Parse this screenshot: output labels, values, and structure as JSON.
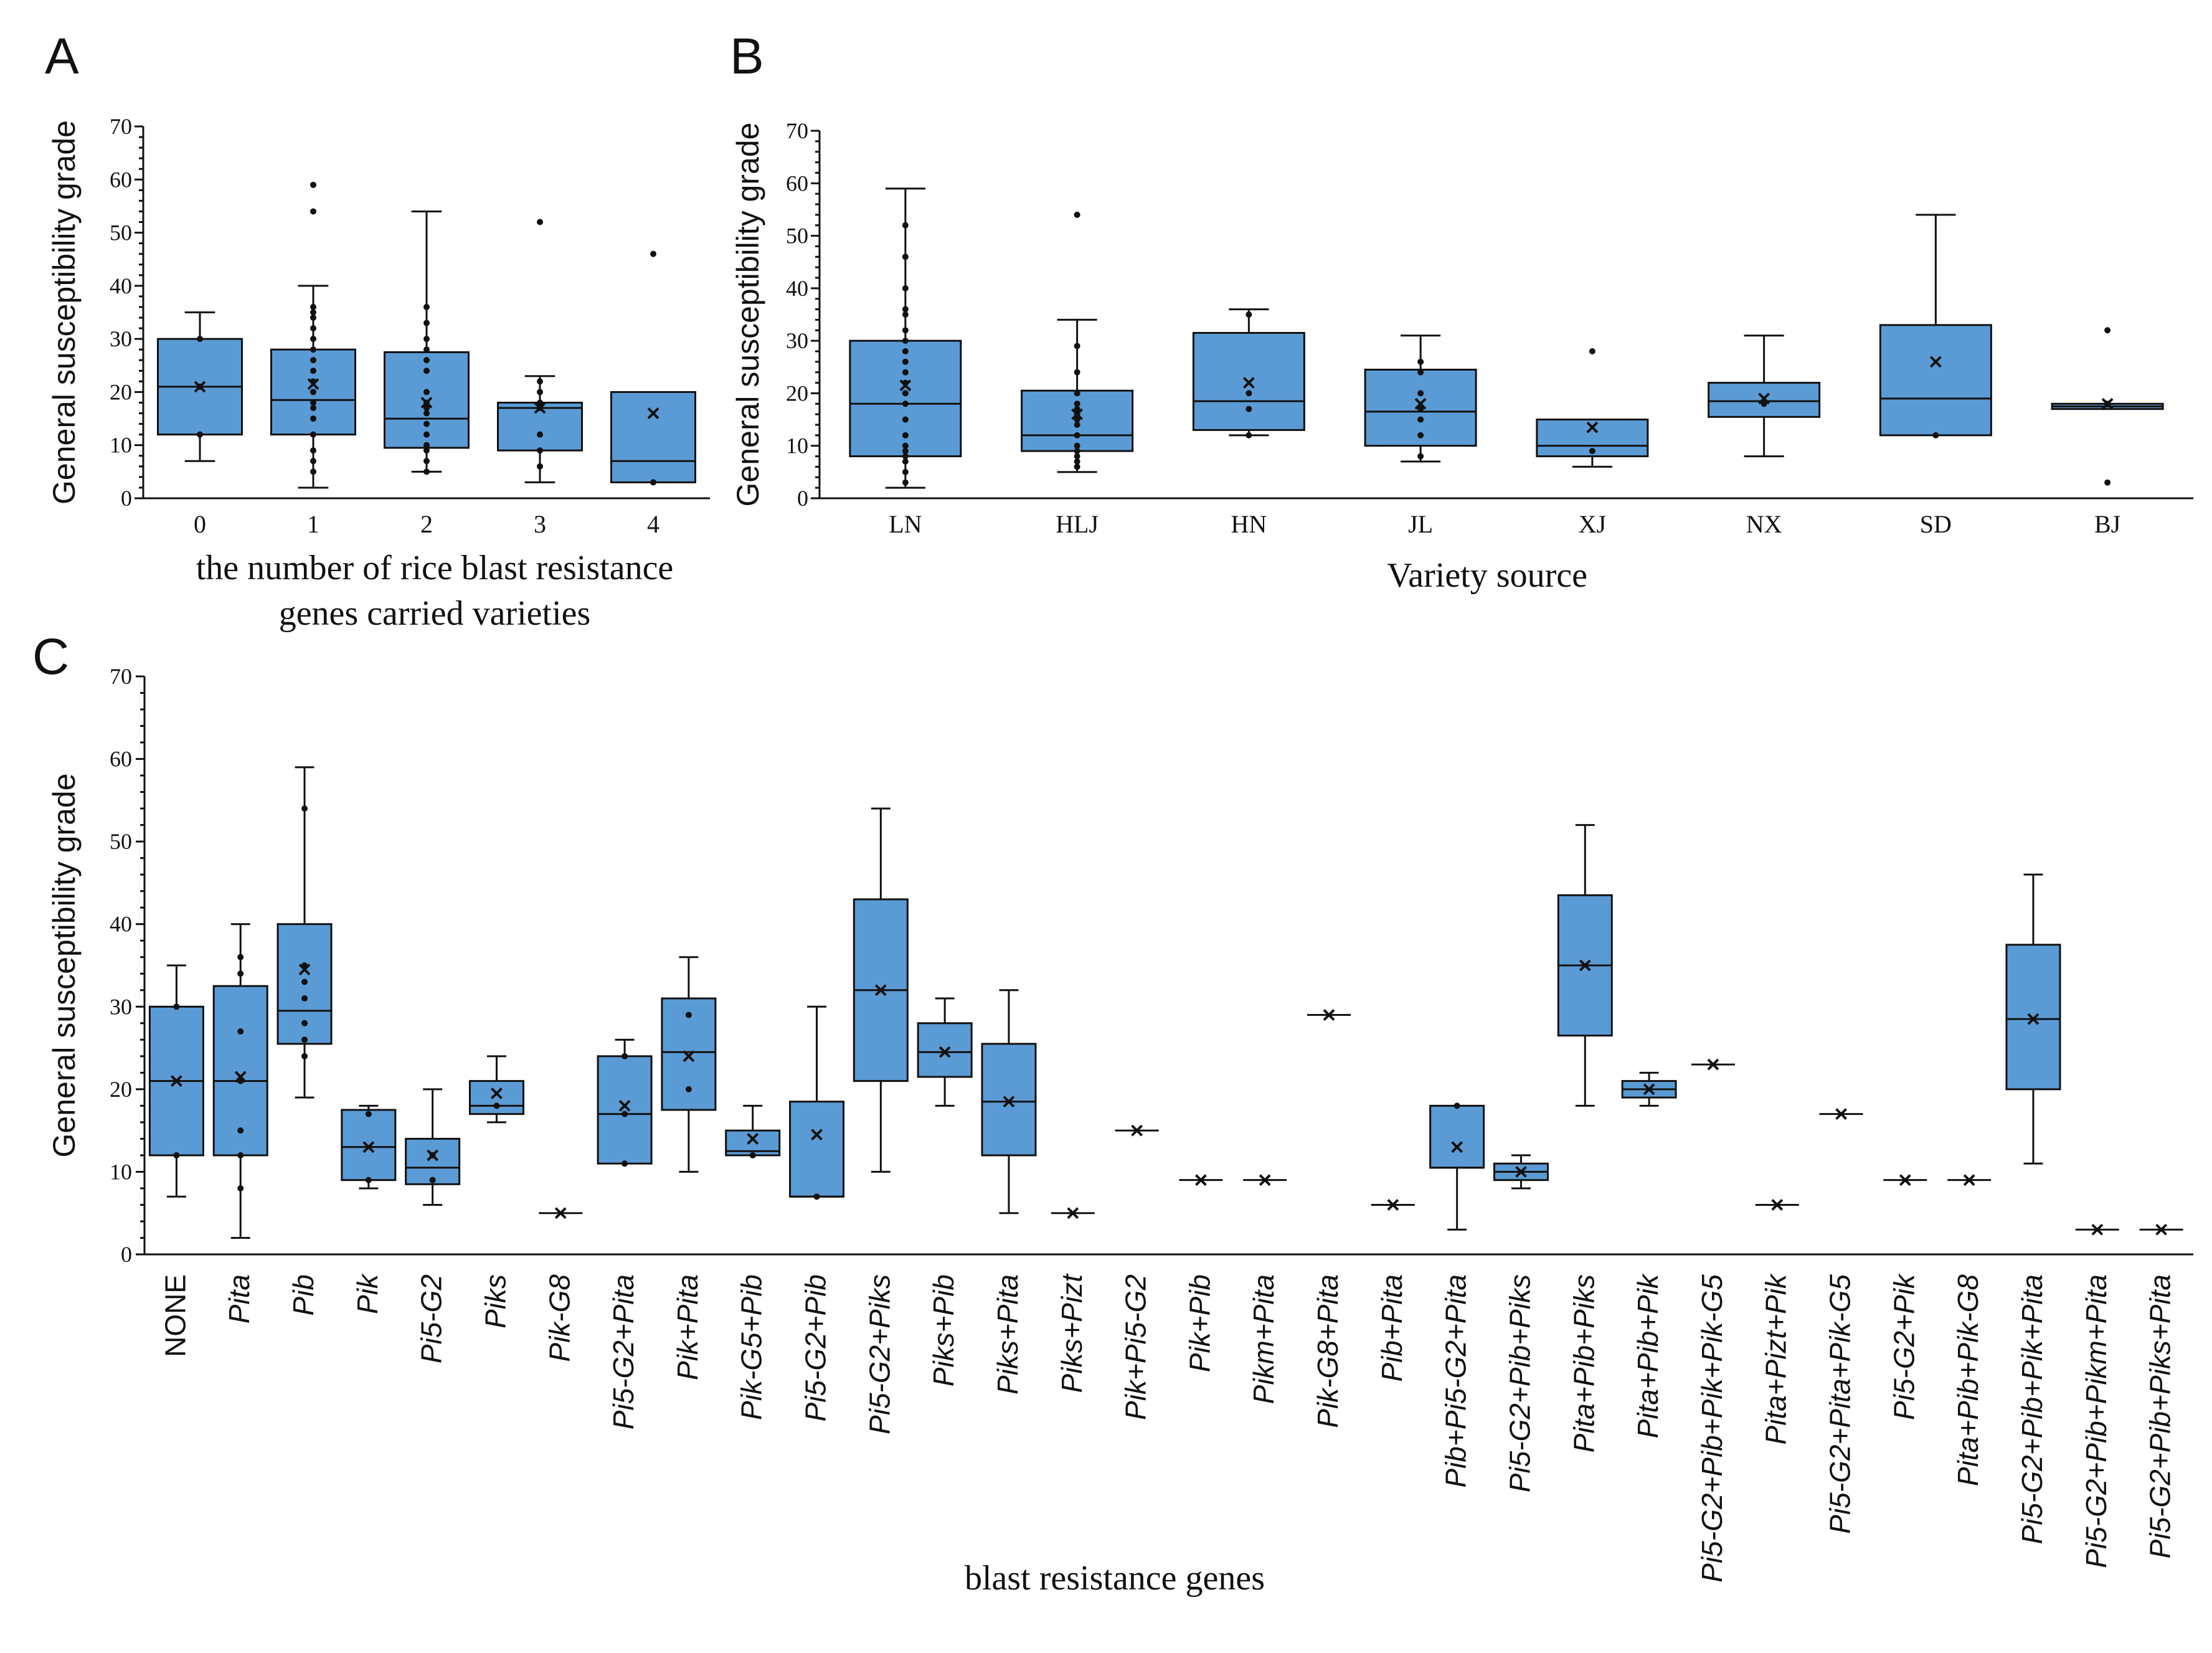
{
  "colors": {
    "box_fill": "#5b9bd5",
    "stroke": "#111111"
  },
  "chart_data": [
    {
      "id": "A",
      "panel_label": "A",
      "type": "box",
      "ylabel": "General susceptibility grade",
      "xlabel_lines": [
        "the number of rice blast resistance",
        "genes carried varieties"
      ],
      "ylim": [
        0,
        70
      ],
      "yticks": [
        0,
        10,
        20,
        30,
        40,
        50,
        60,
        70
      ],
      "categories": [
        {
          "label": "0",
          "q1": 12,
          "median": 21,
          "q3": 30,
          "wlo": 7,
          "whi": 35,
          "mean": 21,
          "points": [
            12,
            21,
            30
          ]
        },
        {
          "label": "1",
          "q1": 12,
          "median": 18.5,
          "q3": 28,
          "wlo": 2,
          "whi": 40,
          "mean": 21.5,
          "points": [
            5,
            7,
            9,
            12,
            15,
            17,
            18,
            20,
            22,
            24,
            26,
            28,
            30,
            32,
            34,
            35,
            36,
            54,
            59
          ]
        },
        {
          "label": "2",
          "q1": 9.5,
          "median": 15,
          "q3": 27.5,
          "wlo": 5,
          "whi": 54,
          "mean": 18,
          "points": [
            5,
            7,
            9,
            10,
            12,
            14,
            16,
            17,
            18,
            20,
            24,
            26,
            28,
            30,
            33,
            36
          ]
        },
        {
          "label": "3",
          "q1": 9,
          "median": 17,
          "q3": 18,
          "wlo": 3,
          "whi": 23,
          "mean": 17,
          "points": [
            6,
            9,
            12,
            17,
            18,
            20,
            22,
            52
          ]
        },
        {
          "label": "4",
          "q1": 3,
          "median": 7,
          "q3": 20,
          "wlo": 3,
          "whi": 20,
          "mean": 16,
          "points": [
            3,
            46
          ]
        }
      ]
    },
    {
      "id": "B",
      "panel_label": "B",
      "type": "box",
      "ylabel": "General susceptibility grade",
      "xlabel_lines": [
        "Variety source"
      ],
      "ylim": [
        0,
        70
      ],
      "yticks": [
        0,
        10,
        20,
        30,
        40,
        50,
        60,
        70
      ],
      "categories": [
        {
          "label": "LN",
          "q1": 8,
          "median": 18,
          "q3": 30,
          "wlo": 2,
          "whi": 59,
          "mean": 21.5,
          "points": [
            3,
            5,
            7,
            8,
            9,
            10,
            12,
            15,
            18,
            20,
            22,
            24,
            26,
            28,
            30,
            32,
            35,
            36,
            40,
            46,
            52
          ]
        },
        {
          "label": "HLJ",
          "q1": 9,
          "median": 12,
          "q3": 20.5,
          "wlo": 5,
          "whi": 34,
          "mean": 16,
          "points": [
            6,
            7,
            8,
            9,
            10,
            12,
            14,
            15,
            16,
            17,
            18,
            20,
            24,
            29,
            54
          ]
        },
        {
          "label": "HN",
          "q1": 13,
          "median": 18.5,
          "q3": 31.5,
          "wlo": 12,
          "whi": 36,
          "mean": 22,
          "points": [
            12,
            17,
            20,
            35
          ]
        },
        {
          "label": "JL",
          "q1": 10,
          "median": 16.5,
          "q3": 24.5,
          "wlo": 7,
          "whi": 31,
          "mean": 18,
          "points": [
            8,
            12,
            15,
            17,
            20,
            24,
            26
          ]
        },
        {
          "label": "XJ",
          "q1": 8,
          "median": 10,
          "q3": 15,
          "wlo": 6,
          "whi": 15,
          "mean": 13.5,
          "points": [
            9,
            28
          ]
        },
        {
          "label": "NX",
          "q1": 15.5,
          "median": 18.5,
          "q3": 22,
          "wlo": 8,
          "whi": 31,
          "mean": 19,
          "points": [
            18
          ]
        },
        {
          "label": "SD",
          "q1": 12,
          "median": 19,
          "q3": 33,
          "wlo": 12,
          "whi": 54,
          "mean": 26,
          "points": [
            12
          ]
        },
        {
          "label": "BJ",
          "q1": 17,
          "median": 17.5,
          "q3": 18,
          "wlo": 17,
          "whi": 18,
          "mean": 18,
          "points": [
            3,
            18,
            32
          ]
        }
      ]
    },
    {
      "id": "C",
      "panel_label": "C",
      "type": "box",
      "ylabel": "General susceptibility grade",
      "xlabel_lines": [
        "blast resistance genes"
      ],
      "ylim": [
        0,
        70
      ],
      "yticks": [
        0,
        10,
        20,
        30,
        40,
        50,
        60,
        70
      ],
      "categories": [
        {
          "label": "NONE",
          "italic": false,
          "q1": 12,
          "median": 21,
          "q3": 30,
          "wlo": 7,
          "whi": 35,
          "mean": 21,
          "points": [
            12,
            30
          ]
        },
        {
          "label": "Pita",
          "italic": true,
          "q1": 12,
          "median": 21,
          "q3": 32.5,
          "wlo": 2,
          "whi": 40,
          "mean": 21.5,
          "points": [
            8,
            12,
            15,
            21,
            27,
            34,
            36
          ]
        },
        {
          "label": "Pib",
          "italic": true,
          "q1": 25.5,
          "median": 29.5,
          "q3": 40,
          "wlo": 19,
          "whi": 59,
          "mean": 34.5,
          "points": [
            24,
            26,
            28,
            31,
            33,
            35,
            54
          ]
        },
        {
          "label": "Pik",
          "italic": true,
          "q1": 9,
          "median": 13,
          "q3": 17.5,
          "wlo": 8,
          "whi": 18,
          "mean": 13,
          "points": [
            9,
            17
          ]
        },
        {
          "label": "Pi5-G2",
          "italic": true,
          "q1": 8.5,
          "median": 10.5,
          "q3": 14,
          "wlo": 6,
          "whi": 20,
          "mean": 12,
          "points": [
            9,
            12
          ]
        },
        {
          "label": "Piks",
          "italic": true,
          "q1": 17,
          "median": 18,
          "q3": 21,
          "wlo": 16,
          "whi": 24,
          "mean": 19.5,
          "points": [
            18
          ]
        },
        {
          "label": "Pik-G8",
          "italic": true,
          "q1": 5,
          "median": 5,
          "q3": 5,
          "wlo": 5,
          "whi": 5,
          "mean": 5,
          "points": []
        },
        {
          "label": "Pi5-G2+Pita",
          "italic": true,
          "q1": 11,
          "median": 17,
          "q3": 24,
          "wlo": 11,
          "whi": 26,
          "mean": 18,
          "points": [
            11,
            17,
            24
          ]
        },
        {
          "label": "Pik+Pita",
          "italic": true,
          "q1": 17.5,
          "median": 24.5,
          "q3": 31,
          "wlo": 10,
          "whi": 36,
          "mean": 24,
          "points": [
            20,
            29
          ]
        },
        {
          "label": "Pik-G5+Pib",
          "italic": true,
          "q1": 12,
          "median": 12.5,
          "q3": 15,
          "wlo": 12,
          "whi": 18,
          "mean": 14,
          "points": [
            12
          ]
        },
        {
          "label": "Pi5-G2+Pib",
          "italic": true,
          "q1": 7,
          "median": 7,
          "q3": 18.5,
          "wlo": 7,
          "whi": 30,
          "mean": 14.5,
          "points": [
            7
          ]
        },
        {
          "label": "Pi5-G2+Piks",
          "italic": true,
          "q1": 21,
          "median": 32,
          "q3": 43,
          "wlo": 10,
          "whi": 54,
          "mean": 32,
          "points": []
        },
        {
          "label": "Piks+Pib",
          "italic": true,
          "q1": 21.5,
          "median": 24.5,
          "q3": 28,
          "wlo": 18,
          "whi": 31,
          "mean": 24.5,
          "points": []
        },
        {
          "label": "Piks+Pita",
          "italic": true,
          "q1": 12,
          "median": 18.5,
          "q3": 25.5,
          "wlo": 5,
          "whi": 32,
          "mean": 18.5,
          "points": []
        },
        {
          "label": "Piks+Pizt",
          "italic": true,
          "q1": 5,
          "median": 5,
          "q3": 5,
          "wlo": 5,
          "whi": 5,
          "mean": 5,
          "points": []
        },
        {
          "label": "Pik+Pi5-G2",
          "italic": true,
          "q1": 15,
          "median": 15,
          "q3": 15,
          "wlo": 15,
          "whi": 15,
          "mean": 15,
          "points": []
        },
        {
          "label": "Pik+Pib",
          "italic": true,
          "q1": 9,
          "median": 9,
          "q3": 9,
          "wlo": 9,
          "whi": 9,
          "mean": 9,
          "points": []
        },
        {
          "label": "Pikm+Pita",
          "italic": true,
          "q1": 9,
          "median": 9,
          "q3": 9,
          "wlo": 9,
          "whi": 9,
          "mean": 9,
          "points": []
        },
        {
          "label": "Pik-G8+Pita",
          "italic": true,
          "q1": 29,
          "median": 29,
          "q3": 29,
          "wlo": 29,
          "whi": 29,
          "mean": 29,
          "points": []
        },
        {
          "label": "Pib+Pita",
          "italic": true,
          "q1": 6,
          "median": 6,
          "q3": 6,
          "wlo": 6,
          "whi": 6,
          "mean": 6,
          "points": []
        },
        {
          "label": "Pib+Pi5-G2+Pita",
          "italic": true,
          "q1": 10.5,
          "median": 10.5,
          "q3": 18,
          "wlo": 3,
          "whi": 18,
          "mean": 13,
          "points": [
            18
          ]
        },
        {
          "label": "Pi5-G2+Pib+Piks",
          "italic": true,
          "q1": 9,
          "median": 10,
          "q3": 11,
          "wlo": 8,
          "whi": 12,
          "mean": 10,
          "points": []
        },
        {
          "label": "Pita+Pib+Piks",
          "italic": true,
          "q1": 26.5,
          "median": 35,
          "q3": 43.5,
          "wlo": 18,
          "whi": 52,
          "mean": 35,
          "points": []
        },
        {
          "label": "Pita+Pib+Pik",
          "italic": true,
          "q1": 19,
          "median": 20,
          "q3": 21,
          "wlo": 18,
          "whi": 22,
          "mean": 20,
          "points": []
        },
        {
          "label": "Pi5-G2+Pib+Pik+Pik-G5",
          "italic": true,
          "q1": 23,
          "median": 23,
          "q3": 23,
          "wlo": 23,
          "whi": 23,
          "mean": 23,
          "points": []
        },
        {
          "label": "Pita+Pizt+Pik",
          "italic": true,
          "q1": 6,
          "median": 6,
          "q3": 6,
          "wlo": 6,
          "whi": 6,
          "mean": 6,
          "points": []
        },
        {
          "label": "Pi5-G2+Pita+Pik-G5",
          "italic": true,
          "q1": 17,
          "median": 17,
          "q3": 17,
          "wlo": 17,
          "whi": 17,
          "mean": 17,
          "points": []
        },
        {
          "label": "Pi5-G2+Pik",
          "italic": true,
          "q1": 9,
          "median": 9,
          "q3": 9,
          "wlo": 9,
          "whi": 9,
          "mean": 9,
          "points": []
        },
        {
          "label": "Pita+Pib+Pik-G8",
          "italic": true,
          "q1": 9,
          "median": 9,
          "q3": 9,
          "wlo": 9,
          "whi": 9,
          "mean": 9,
          "points": []
        },
        {
          "label": "Pi5-G2+Pib+Pik+Pita",
          "italic": true,
          "q1": 20,
          "median": 28.5,
          "q3": 37.5,
          "wlo": 11,
          "whi": 46,
          "mean": 28.5,
          "points": []
        },
        {
          "label": "Pi5-G2+Pib+Pikm+Pita",
          "italic": true,
          "q1": 3,
          "median": 3,
          "q3": 3,
          "wlo": 3,
          "whi": 3,
          "mean": 3,
          "points": []
        },
        {
          "label": "Pi5-G2+Pib+Piks+Pita",
          "italic": true,
          "q1": 3,
          "median": 3,
          "q3": 3,
          "wlo": 3,
          "whi": 3,
          "mean": 3,
          "points": []
        }
      ]
    }
  ]
}
